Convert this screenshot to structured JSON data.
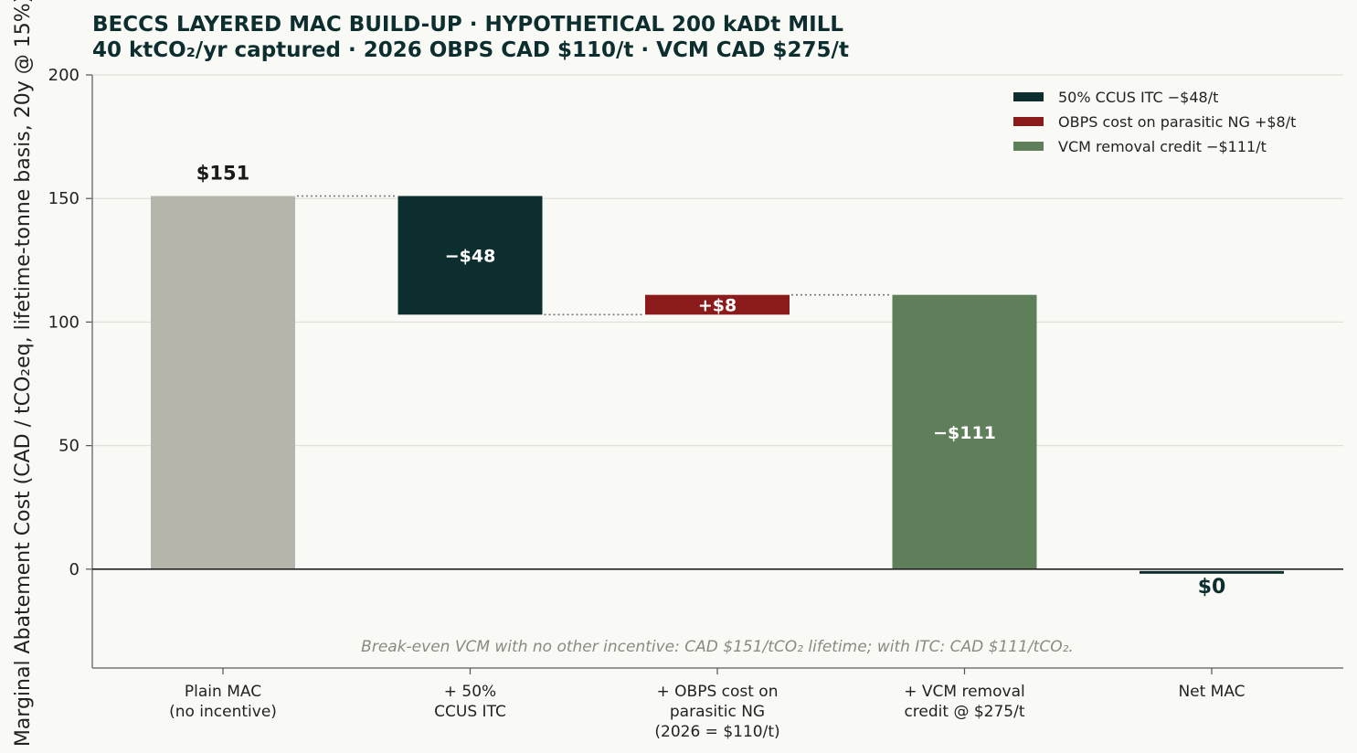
{
  "title_line1": "BECCS LAYERED MAC BUILD-UP  ·  HYPOTHETICAL 200 kADt MILL",
  "title_line2": "40 ktCO₂/yr captured  ·  2026 OBPS CAD $110/t  ·  VCM CAD $275/t",
  "colors": {
    "background": "#f9f9f5",
    "base": "#b5b5ab",
    "itc": "#0d2e2e",
    "obps": "#8b1a1a",
    "vcm": "#5e7f5a",
    "net": "#0d2e2e"
  },
  "chart_data": {
    "type": "bar",
    "subtype": "waterfall",
    "ylabel": "Marginal Abatement Cost (CAD / tCO₂eq, lifetime-tonne basis, 20y @ 15%)",
    "ylim": [
      -40,
      200
    ],
    "yticks": [
      0,
      50,
      100,
      150,
      200
    ],
    "grid": true,
    "legend_position": "top-right",
    "categories": [
      [
        "Plain MAC",
        "(no incentive)"
      ],
      [
        "+ 50%",
        "CCUS ITC"
      ],
      [
        "+ OBPS cost on",
        "parasitic NG",
        "(2026 = $110/t)"
      ],
      [
        "+ VCM removal",
        "credit @ $275/t"
      ],
      [
        "Net MAC"
      ]
    ],
    "bars": [
      {
        "kind": "total",
        "start": 0,
        "end": 151,
        "label": "$151",
        "color_key": "base"
      },
      {
        "kind": "delta",
        "start": 151,
        "end": 103,
        "label": "−$48",
        "color_key": "itc"
      },
      {
        "kind": "delta",
        "start": 103,
        "end": 111,
        "label": "+$8",
        "color_key": "obps"
      },
      {
        "kind": "delta",
        "start": 111,
        "end": 0,
        "label": "−$111",
        "color_key": "vcm"
      },
      {
        "kind": "total",
        "start": 0,
        "end": 0,
        "label": "$0",
        "color_key": "net"
      }
    ],
    "legend": [
      {
        "label": "50% CCUS ITC  −$48/t",
        "color_key": "itc"
      },
      {
        "label": "OBPS cost on parasitic NG  +$8/t",
        "color_key": "obps"
      },
      {
        "label": "VCM removal credit  −$111/t",
        "color_key": "vcm"
      }
    ],
    "annotation": "Break-even VCM with no other incentive: CAD $151/tCO₂ lifetime; with ITC: CAD $111/tCO₂."
  }
}
